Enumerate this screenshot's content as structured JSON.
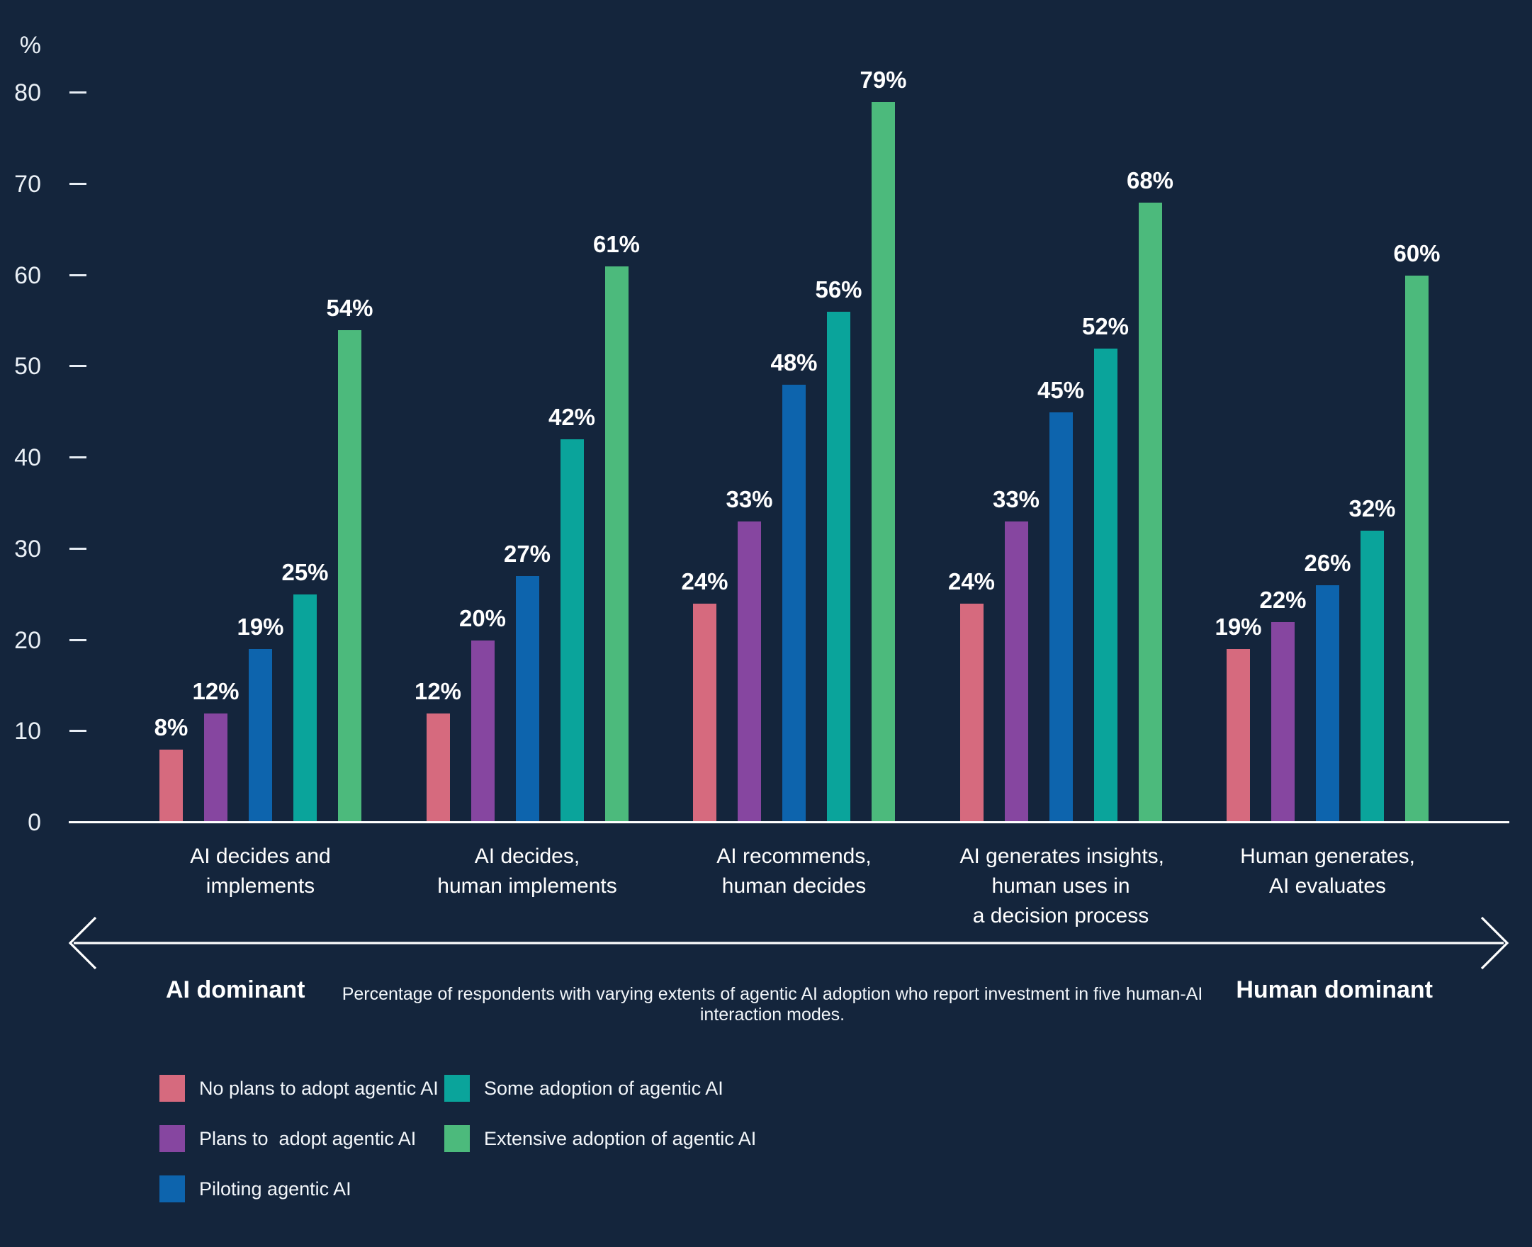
{
  "chart_data": {
    "type": "bar",
    "title": "",
    "y_axis_unit": "%",
    "ylim": [
      0,
      80
    ],
    "yticks": [
      0,
      10,
      20,
      30,
      40,
      50,
      60,
      70,
      80
    ],
    "grid": false,
    "legend_position": "bottom-left",
    "value_label_suffix": "%",
    "categories": [
      {
        "label": "AI decides and implements",
        "lines": [
          "AI decides and",
          "implements"
        ]
      },
      {
        "label": "AI decides, human implements",
        "lines": [
          "AI decides,",
          "human implements"
        ]
      },
      {
        "label": "AI recommends, human decides",
        "lines": [
          "AI recommends,",
          "human decides"
        ]
      },
      {
        "label": "AI generates insights, human uses in a decision process",
        "lines": [
          "AI generates insights,",
          "human uses in",
          "a decision process"
        ]
      },
      {
        "label": "Human generates, AI evaluates",
        "lines": [
          "Human generates,",
          "AI evaluates"
        ]
      }
    ],
    "series": [
      {
        "name": "No plans to adopt agentic AI",
        "color": "#d66a7e",
        "values": [
          8,
          12,
          24,
          24,
          19
        ]
      },
      {
        "name": "Plans to  adopt agentic AI",
        "color": "#8646a0",
        "values": [
          12,
          20,
          33,
          33,
          22
        ]
      },
      {
        "name": "Piloting agentic AI",
        "color": "#0d64ad",
        "values": [
          19,
          27,
          48,
          45,
          26
        ]
      },
      {
        "name": "Some adoption of agentic AI",
        "color": "#0aa49b",
        "values": [
          25,
          42,
          56,
          52,
          32
        ]
      },
      {
        "name": "Extensive adoption of agentic AI",
        "color": "#4cba7c",
        "values": [
          54,
          61,
          79,
          68,
          60
        ]
      }
    ],
    "legend_columns": [
      [
        0,
        1,
        2
      ],
      [
        3,
        4
      ]
    ]
  },
  "arrow": {
    "left_label": "AI dominant",
    "right_label": "Human dominant",
    "caption": "Percentage of respondents with varying extents of agentic AI adoption who report investment in five human-AI interaction modes."
  },
  "colors": {
    "background": "#14253c",
    "axis": "#ffffff",
    "text": "#ffffff"
  }
}
